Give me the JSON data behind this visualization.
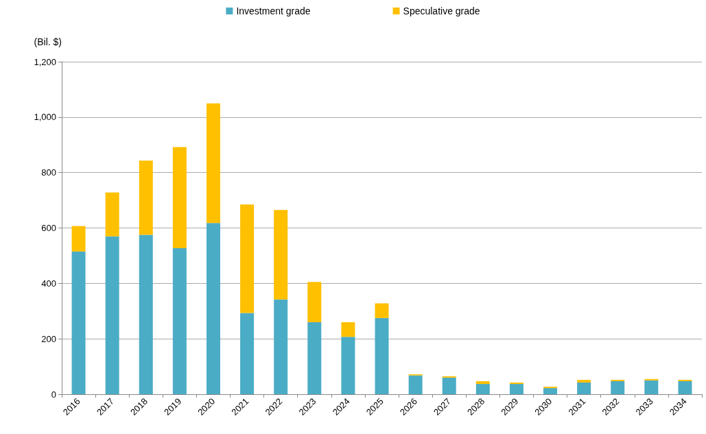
{
  "chart_data": {
    "type": "bar",
    "stacked": true,
    "ylabel": "(Bil. $)",
    "categories": [
      "2016",
      "2017",
      "2018",
      "2019",
      "2020",
      "2021",
      "2022",
      "2023",
      "2024",
      "2025",
      "2026",
      "2027",
      "2028",
      "2029",
      "2030",
      "2031",
      "2032",
      "2033",
      "2034"
    ],
    "series": [
      {
        "name": "Investment grade",
        "color": "#4bacc6",
        "values": [
          515,
          570,
          575,
          527,
          618,
          293,
          342,
          260,
          207,
          275,
          68,
          60,
          37,
          37,
          22,
          42,
          47,
          50,
          47
        ]
      },
      {
        "name": "Speculative grade",
        "color": "#ffc000",
        "values": [
          92,
          158,
          268,
          365,
          432,
          392,
          323,
          145,
          53,
          53,
          4,
          5,
          10,
          5,
          5,
          10,
          5,
          5,
          5
        ]
      }
    ],
    "ylim": [
      0,
      1200
    ],
    "yticks": [
      0,
      200,
      400,
      600,
      800,
      {
        "value": 1000,
        "label": "1,000"
      },
      {
        "value": 1200,
        "label": "1,200"
      }
    ],
    "grid": "y",
    "legend": "top"
  }
}
